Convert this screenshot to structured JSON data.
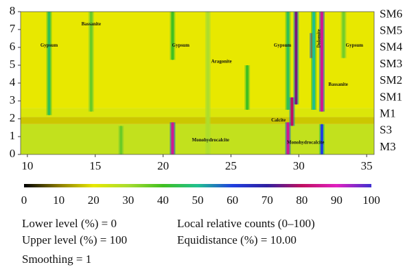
{
  "chart_data": {
    "type": "heatmap",
    "xlim": [
      9.5,
      35.55
    ],
    "xticks": [
      10,
      15,
      20,
      25,
      30,
      35
    ],
    "ylim": [
      0,
      8
    ],
    "yticks": [
      0,
      1,
      2,
      3,
      4,
      5,
      6,
      7,
      8
    ],
    "row_labels": [
      "M3",
      "S3",
      "M1",
      "SM1",
      "SM2",
      "SM3",
      "SM4",
      "SM5",
      "SM6"
    ],
    "background_bands": [
      {
        "y0": 0,
        "y1": 1.7,
        "value": 26
      },
      {
        "y0": 1.7,
        "y1": 2.1,
        "value": 17
      },
      {
        "y0": 2.1,
        "y1": 2.6,
        "value": 22
      },
      {
        "y0": 2.6,
        "y1": 8,
        "value": 20
      }
    ],
    "peaks": [
      {
        "x": 11.6,
        "y0": 2.2,
        "y1": 8,
        "value": 45
      },
      {
        "x": 14.7,
        "y0": 2.4,
        "y1": 8,
        "value": 36
      },
      {
        "x": 16.9,
        "y0": 0,
        "y1": 1.6,
        "value": 36
      },
      {
        "x": 20.7,
        "y0": 0,
        "y1": 1.8,
        "value": 85
      },
      {
        "x": 20.7,
        "y0": 5.3,
        "y1": 8,
        "value": 40
      },
      {
        "x": 23.3,
        "y0": 0,
        "y1": 8,
        "value": 29
      },
      {
        "x": 26.2,
        "y0": 2.5,
        "y1": 5,
        "value": 40
      },
      {
        "x": 29.2,
        "y0": 0,
        "y1": 1.8,
        "value": 85
      },
      {
        "x": 29.2,
        "y0": 2.5,
        "y1": 8,
        "value": 45
      },
      {
        "x": 29.5,
        "y0": 1.6,
        "y1": 3.2,
        "value": 80
      },
      {
        "x": 29.8,
        "y0": 2.8,
        "y1": 8,
        "value": 75
      },
      {
        "x": 31.0,
        "y0": 5.4,
        "y1": 6.8,
        "value": 82
      },
      {
        "x": 31.1,
        "y0": 2.5,
        "y1": 8,
        "value": 50
      },
      {
        "x": 31.7,
        "y0": 2.4,
        "y1": 8,
        "value": 85
      },
      {
        "x": 31.7,
        "y0": 0,
        "y1": 1.7,
        "value": 60
      },
      {
        "x": 33.3,
        "y0": 5.4,
        "y1": 8,
        "value": 35
      }
    ],
    "annotations": [
      "Gypsum",
      "Bassanite",
      "Gypsum",
      "Aragonite",
      "Gypsum",
      "Dolomite",
      "Gypsum",
      "Bassanite",
      "Calcite",
      "Monohydrocalcite",
      "Monohydrocalcite"
    ],
    "colorscale": [
      "#000000",
      "#8a7a00",
      "#e8e800",
      "#a8dc30",
      "#40c020",
      "#20c090",
      "#2040e0",
      "#3020a0",
      "#c01060",
      "#e020c0",
      "#4030d0"
    ],
    "clim": [
      0,
      100
    ],
    "cticks": [
      0,
      10,
      20,
      30,
      40,
      50,
      60,
      70,
      80,
      90,
      100
    ],
    "notes": [
      "Lower level (%) = 0",
      "Upper level (%) = 100",
      "Smoothing = 1",
      "Local relative counts (0–100)",
      "Equidistance (%)  = 10.00"
    ]
  }
}
